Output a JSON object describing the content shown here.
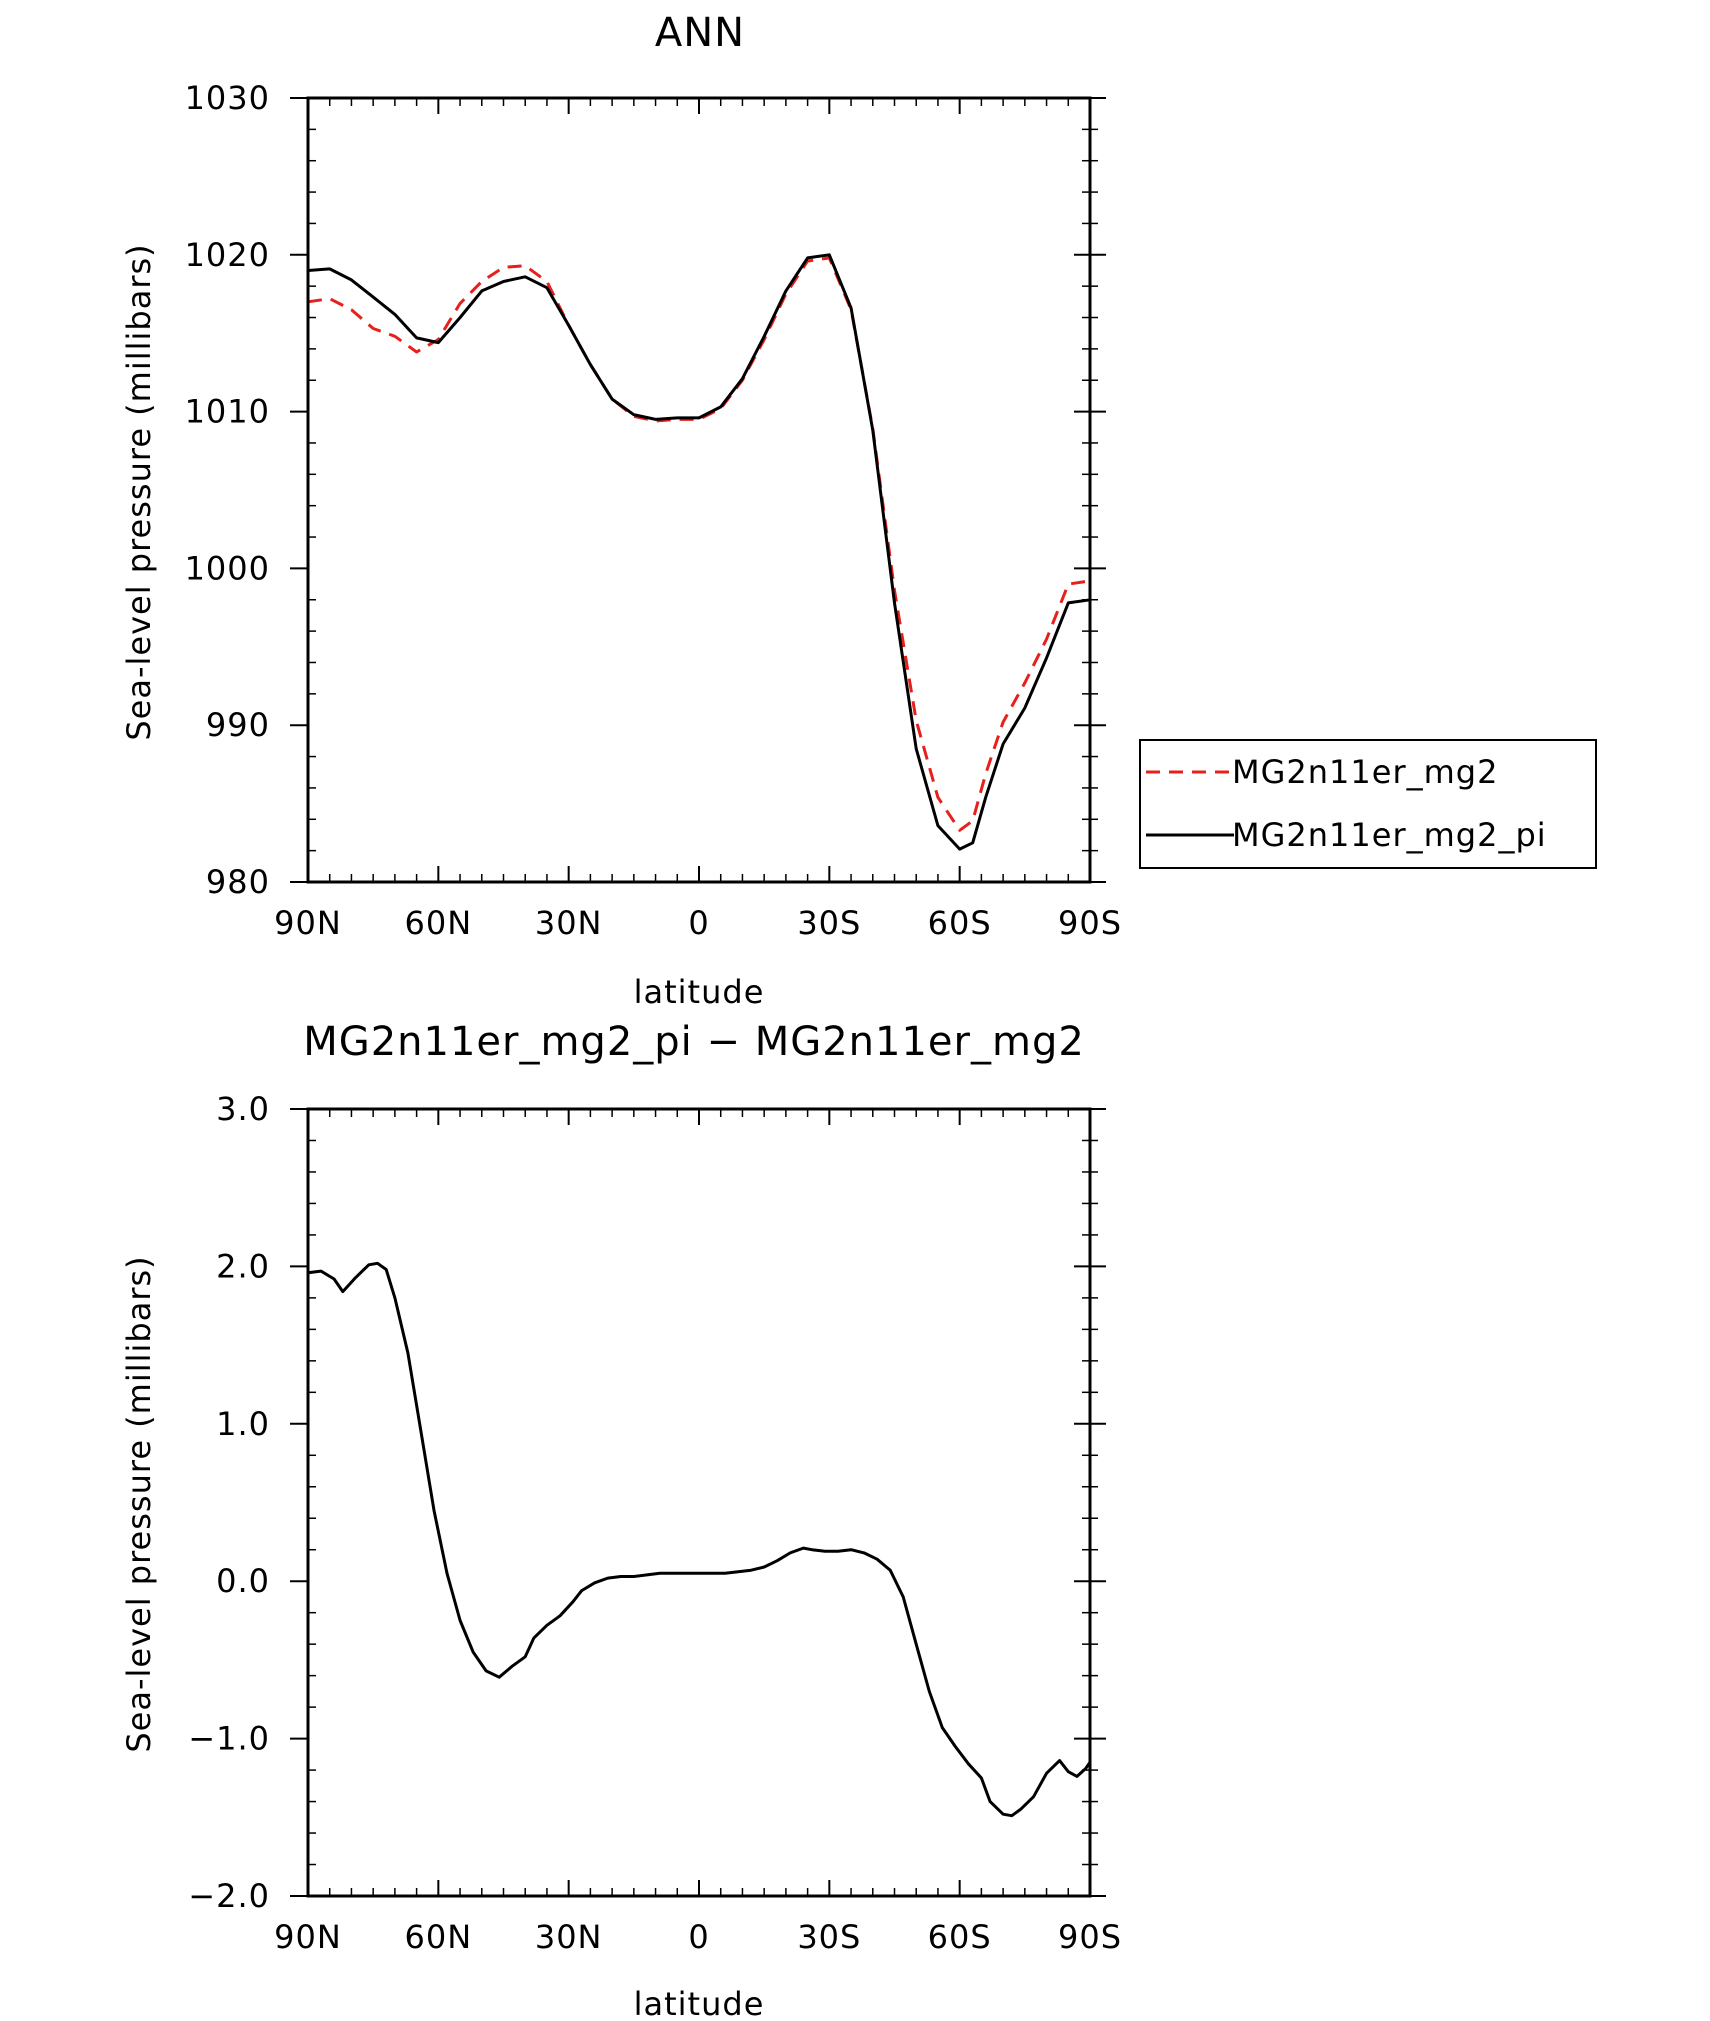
{
  "chart_data": [
    {
      "type": "line",
      "title": "ANN",
      "xlabel": "latitude",
      "ylabel": "Sea-level pressure (millibars)",
      "xlim": [
        90,
        -90
      ],
      "ylim": [
        980,
        1030
      ],
      "x_ticks": [
        90,
        60,
        30,
        0,
        -30,
        -60,
        -90
      ],
      "x_tick_labels": [
        "90N",
        "60N",
        "30N",
        "0",
        "30S",
        "60S",
        "90S"
      ],
      "y_ticks": [
        980,
        990,
        1000,
        1010,
        1020,
        1030
      ],
      "y_tick_labels": [
        "980",
        "990",
        "1000",
        "1010",
        "1020",
        "1030"
      ],
      "legend_position": "right",
      "series": [
        {
          "name": "MG2n11er_mg2",
          "color": "#e8201c",
          "dash": "dashed",
          "x": [
            90,
            85,
            80,
            75,
            70,
            65,
            60,
            55,
            50,
            45,
            40,
            35,
            30,
            25,
            20,
            15,
            10,
            5,
            0,
            -5,
            -10,
            -15,
            -20,
            -25,
            -30,
            -35,
            -40,
            -45,
            -50,
            -55,
            -60,
            -63,
            -66,
            -70,
            -75,
            -80,
            -85,
            -90
          ],
          "y": [
            1017.0,
            1017.2,
            1016.5,
            1015.3,
            1014.8,
            1013.8,
            1014.6,
            1016.9,
            1018.3,
            1019.2,
            1019.3,
            1018.3,
            1015.5,
            1013.0,
            1010.8,
            1009.7,
            1009.4,
            1009.5,
            1009.5,
            1010.2,
            1012.0,
            1014.6,
            1017.5,
            1019.6,
            1019.8,
            1016.5,
            1008.9,
            998.6,
            990.3,
            985.4,
            983.3,
            983.9,
            986.9,
            990.2,
            992.7,
            995.5,
            999.0,
            999.2
          ]
        },
        {
          "name": "MG2n11er_mg2_pi",
          "color": "#000000",
          "dash": "solid",
          "x": [
            90,
            85,
            80,
            75,
            70,
            65,
            60,
            55,
            50,
            45,
            40,
            35,
            30,
            25,
            20,
            15,
            10,
            5,
            0,
            -5,
            -10,
            -15,
            -20,
            -25,
            -30,
            -35,
            -40,
            -45,
            -50,
            -55,
            -60,
            -63,
            -66,
            -70,
            -75,
            -80,
            -85,
            -90
          ],
          "y": [
            1019.0,
            1019.1,
            1018.4,
            1017.3,
            1016.2,
            1014.7,
            1014.4,
            1016.0,
            1017.7,
            1018.3,
            1018.6,
            1017.9,
            1015.5,
            1013.0,
            1010.8,
            1009.8,
            1009.5,
            1009.6,
            1009.6,
            1010.3,
            1012.1,
            1014.8,
            1017.7,
            1019.8,
            1020.0,
            1016.6,
            1008.8,
            997.8,
            988.5,
            983.6,
            982.1,
            982.5,
            985.4,
            988.8,
            991.1,
            994.3,
            997.8,
            998.0
          ]
        }
      ]
    },
    {
      "type": "line",
      "title": "MG2n11er_mg2_pi − MG2n11er_mg2",
      "xlabel": "latitude",
      "ylabel": "Sea-level pressure (millibars)",
      "xlim": [
        90,
        -90
      ],
      "ylim": [
        -2.0,
        3.0
      ],
      "x_ticks": [
        90,
        60,
        30,
        0,
        -30,
        -60,
        -90
      ],
      "x_tick_labels": [
        "90N",
        "60N",
        "30N",
        "0",
        "30S",
        "60S",
        "90S"
      ],
      "y_ticks": [
        -2.0,
        -1.0,
        0.0,
        1.0,
        2.0,
        3.0
      ],
      "y_tick_labels": [
        "−2.0",
        "−1.0",
        "0.0",
        "1.0",
        "2.0",
        "3.0"
      ],
      "series": [
        {
          "color": "#000000",
          "dash": "solid",
          "x": [
            90,
            87,
            84,
            82,
            79,
            76,
            74,
            72,
            70,
            67,
            64,
            61,
            58,
            55,
            52,
            49,
            46,
            43,
            40,
            38,
            35,
            32,
            29,
            27,
            24,
            21,
            18,
            15,
            12,
            9,
            6,
            3,
            0,
            -3,
            -6,
            -9,
            -12,
            -15,
            -18,
            -21,
            -24,
            -26,
            -29,
            -32,
            -35,
            -38,
            -41,
            -44,
            -47,
            -50,
            -53,
            -56,
            -59,
            -62,
            -65,
            -67,
            -70,
            -72,
            -74,
            -77,
            -80,
            -83,
            -85,
            -87,
            -89,
            -90
          ],
          "y": [
            1.96,
            1.97,
            1.92,
            1.84,
            1.93,
            2.01,
            2.02,
            1.98,
            1.8,
            1.45,
            0.95,
            0.45,
            0.05,
            -0.25,
            -0.45,
            -0.57,
            -0.61,
            -0.54,
            -0.48,
            -0.36,
            -0.28,
            -0.22,
            -0.13,
            -0.06,
            -0.01,
            0.02,
            0.03,
            0.03,
            0.04,
            0.05,
            0.05,
            0.05,
            0.05,
            0.05,
            0.05,
            0.06,
            0.07,
            0.09,
            0.13,
            0.18,
            0.21,
            0.2,
            0.19,
            0.19,
            0.2,
            0.18,
            0.14,
            0.07,
            -0.1,
            -0.4,
            -0.7,
            -0.93,
            -1.05,
            -1.16,
            -1.25,
            -1.4,
            -1.48,
            -1.49,
            -1.45,
            -1.37,
            -1.22,
            -1.14,
            -1.21,
            -1.24,
            -1.19,
            -1.15
          ]
        }
      ]
    }
  ],
  "legend": {
    "items": [
      "MG2n11er_mg2",
      "MG2n11er_mg2_pi"
    ]
  }
}
